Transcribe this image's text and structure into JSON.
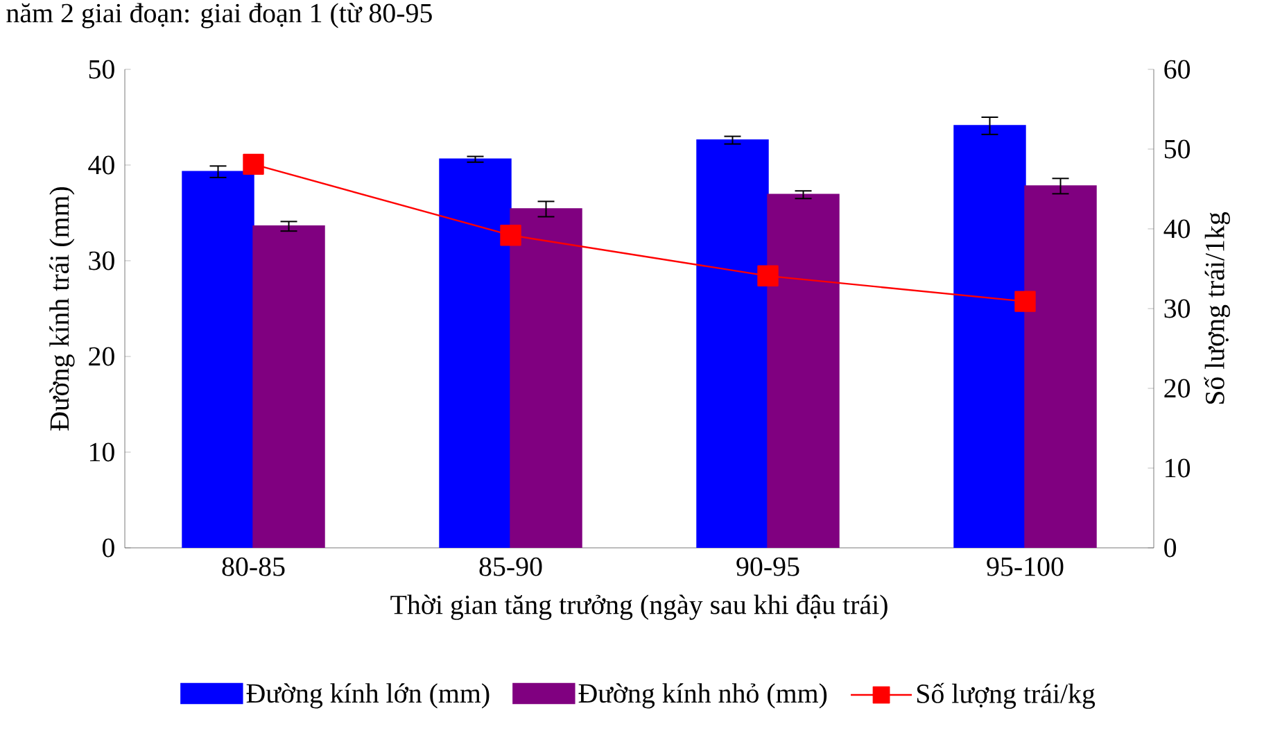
{
  "chart_data": {
    "type": "bar",
    "annotations": [
      "năm 2 giai đoạn: giai đoạn 1 (từ 80-95"
    ],
    "xlabel": "Thời gian tăng trưởng (ngày sau khi đậu trái)",
    "ylabel": "Đường kính trái (mm)",
    "y2label": "Số lượng trái/1kg",
    "categories": [
      "80-85",
      "85-90",
      "90-95",
      "95-100"
    ],
    "series": [
      {
        "name": "Đường kính lớn (mm)",
        "color": "#0000ff",
        "values": [
          39.3,
          40.6,
          42.6,
          44.1
        ],
        "errors": [
          0.6,
          0.3,
          0.4,
          0.9
        ]
      },
      {
        "name": "Đường kính nhỏ (mm)",
        "color": "#800080",
        "values": [
          33.6,
          35.4,
          36.9,
          37.8
        ],
        "errors": [
          0.5,
          0.8,
          0.4,
          0.8
        ]
      },
      {
        "name": "Số lượng trái/kg",
        "type": "line",
        "axis": "y2",
        "color": "#ff0000",
        "marker": "square",
        "values": [
          48.1,
          39.2,
          34.1,
          30.9
        ]
      }
    ],
    "ylim": [
      0,
      50
    ],
    "yticks": [
      0,
      10,
      20,
      30,
      40,
      50
    ],
    "y2lim": [
      0,
      60
    ],
    "y2ticks": [
      0,
      10,
      20,
      30,
      40,
      50,
      60
    ],
    "grid": false,
    "legend": "bottom"
  }
}
